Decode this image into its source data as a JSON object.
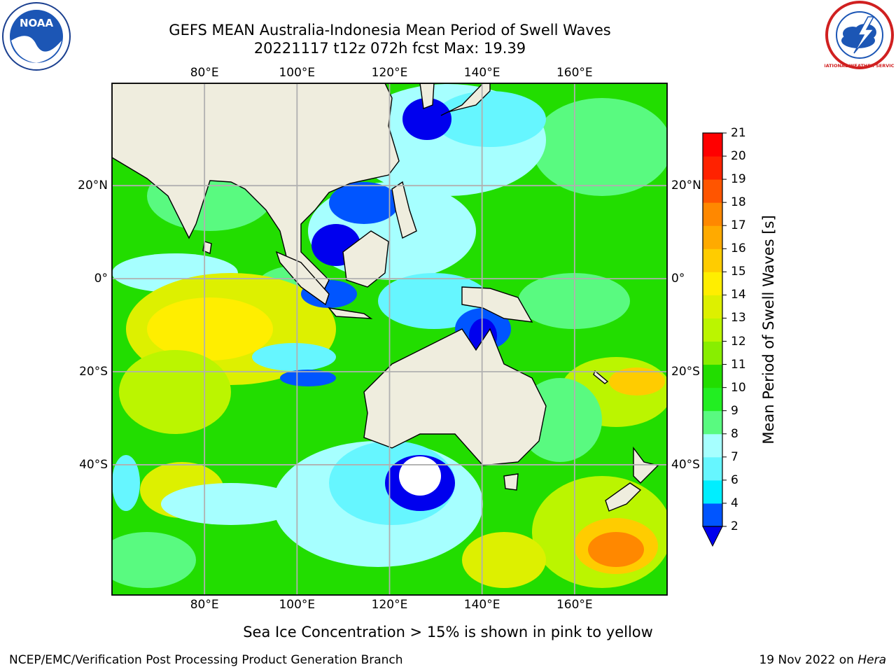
{
  "title": {
    "line1": "GEFS MEAN Australia-Indonesia Mean Period of Swell Waves",
    "line2": "20221117 t12z 072h fcst   Max: 19.39"
  },
  "logos": {
    "left": "noaa-logo",
    "right": "nws-logo",
    "left_text": "NOAA",
    "right_text": "NATIONAL WEATHER SERVICE"
  },
  "map": {
    "lon_ticks": [
      "80°E",
      "100°E",
      "120°E",
      "140°E",
      "160°E"
    ],
    "lat_ticks": [
      "20°N",
      "0°",
      "20°S",
      "40°S"
    ],
    "lon_values": [
      80,
      100,
      120,
      140,
      160
    ],
    "lat_values": [
      20,
      0,
      -20,
      -40
    ],
    "extent": {
      "lon": [
        60,
        180
      ],
      "lat": [
        -68,
        42
      ]
    },
    "land_color": "#efedde",
    "grid_color": "#b0b0b0"
  },
  "colorbar": {
    "label": "Mean Period of Swell Waves [s]",
    "ticks": [
      "2",
      "4",
      "6",
      "7",
      "8",
      "9",
      "10",
      "11",
      "12",
      "13",
      "14",
      "15",
      "16",
      "17",
      "18",
      "19",
      "20",
      "21"
    ],
    "colors": [
      "#0055ff",
      "#00c0ff",
      "#00eeff",
      "#66f6ff",
      "#a6ffff",
      "#59fa80",
      "#22ee22",
      "#22dd00",
      "#88ee00",
      "#bbf500",
      "#ddf000",
      "#ffee00",
      "#ffcc00",
      "#ffaa00",
      "#ff8800",
      "#ff5500",
      "#ff2200",
      "#ff0000"
    ],
    "under_color": "#0000ee"
  },
  "note": "Sea Ice Concentration > 15% is shown in pink to yellow",
  "credit": "NCEP/EMC/Verification Post Processing Product Generation Branch",
  "date": "19 Nov 2022 on ",
  "host": "Hera"
}
